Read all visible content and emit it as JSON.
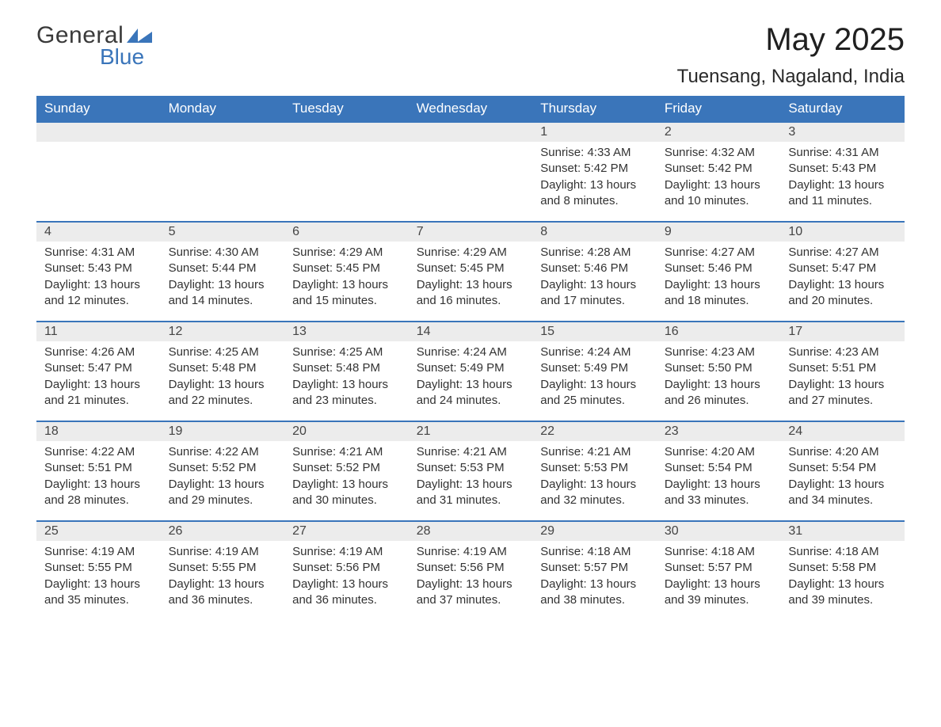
{
  "logo": {
    "word1": "General",
    "word2": "Blue"
  },
  "title": "May 2025",
  "location": "Tuensang, Nagaland, India",
  "colors": {
    "brand_blue": "#3a75ba",
    "header_bg": "#3a75ba",
    "header_text": "#ffffff",
    "daynum_bg": "#ececec",
    "body_text": "#333333",
    "page_bg": "#ffffff"
  },
  "weekdays": [
    "Sunday",
    "Monday",
    "Tuesday",
    "Wednesday",
    "Thursday",
    "Friday",
    "Saturday"
  ],
  "weeks": [
    [
      {
        "blank": true
      },
      {
        "blank": true
      },
      {
        "blank": true
      },
      {
        "blank": true
      },
      {
        "day": "1",
        "sunrise": "Sunrise: 4:33 AM",
        "sunset": "Sunset: 5:42 PM",
        "daylight": "Daylight: 13 hours and 8 minutes."
      },
      {
        "day": "2",
        "sunrise": "Sunrise: 4:32 AM",
        "sunset": "Sunset: 5:42 PM",
        "daylight": "Daylight: 13 hours and 10 minutes."
      },
      {
        "day": "3",
        "sunrise": "Sunrise: 4:31 AM",
        "sunset": "Sunset: 5:43 PM",
        "daylight": "Daylight: 13 hours and 11 minutes."
      }
    ],
    [
      {
        "day": "4",
        "sunrise": "Sunrise: 4:31 AM",
        "sunset": "Sunset: 5:43 PM",
        "daylight": "Daylight: 13 hours and 12 minutes."
      },
      {
        "day": "5",
        "sunrise": "Sunrise: 4:30 AM",
        "sunset": "Sunset: 5:44 PM",
        "daylight": "Daylight: 13 hours and 14 minutes."
      },
      {
        "day": "6",
        "sunrise": "Sunrise: 4:29 AM",
        "sunset": "Sunset: 5:45 PM",
        "daylight": "Daylight: 13 hours and 15 minutes."
      },
      {
        "day": "7",
        "sunrise": "Sunrise: 4:29 AM",
        "sunset": "Sunset: 5:45 PM",
        "daylight": "Daylight: 13 hours and 16 minutes."
      },
      {
        "day": "8",
        "sunrise": "Sunrise: 4:28 AM",
        "sunset": "Sunset: 5:46 PM",
        "daylight": "Daylight: 13 hours and 17 minutes."
      },
      {
        "day": "9",
        "sunrise": "Sunrise: 4:27 AM",
        "sunset": "Sunset: 5:46 PM",
        "daylight": "Daylight: 13 hours and 18 minutes."
      },
      {
        "day": "10",
        "sunrise": "Sunrise: 4:27 AM",
        "sunset": "Sunset: 5:47 PM",
        "daylight": "Daylight: 13 hours and 20 minutes."
      }
    ],
    [
      {
        "day": "11",
        "sunrise": "Sunrise: 4:26 AM",
        "sunset": "Sunset: 5:47 PM",
        "daylight": "Daylight: 13 hours and 21 minutes."
      },
      {
        "day": "12",
        "sunrise": "Sunrise: 4:25 AM",
        "sunset": "Sunset: 5:48 PM",
        "daylight": "Daylight: 13 hours and 22 minutes."
      },
      {
        "day": "13",
        "sunrise": "Sunrise: 4:25 AM",
        "sunset": "Sunset: 5:48 PM",
        "daylight": "Daylight: 13 hours and 23 minutes."
      },
      {
        "day": "14",
        "sunrise": "Sunrise: 4:24 AM",
        "sunset": "Sunset: 5:49 PM",
        "daylight": "Daylight: 13 hours and 24 minutes."
      },
      {
        "day": "15",
        "sunrise": "Sunrise: 4:24 AM",
        "sunset": "Sunset: 5:49 PM",
        "daylight": "Daylight: 13 hours and 25 minutes."
      },
      {
        "day": "16",
        "sunrise": "Sunrise: 4:23 AM",
        "sunset": "Sunset: 5:50 PM",
        "daylight": "Daylight: 13 hours and 26 minutes."
      },
      {
        "day": "17",
        "sunrise": "Sunrise: 4:23 AM",
        "sunset": "Sunset: 5:51 PM",
        "daylight": "Daylight: 13 hours and 27 minutes."
      }
    ],
    [
      {
        "day": "18",
        "sunrise": "Sunrise: 4:22 AM",
        "sunset": "Sunset: 5:51 PM",
        "daylight": "Daylight: 13 hours and 28 minutes."
      },
      {
        "day": "19",
        "sunrise": "Sunrise: 4:22 AM",
        "sunset": "Sunset: 5:52 PM",
        "daylight": "Daylight: 13 hours and 29 minutes."
      },
      {
        "day": "20",
        "sunrise": "Sunrise: 4:21 AM",
        "sunset": "Sunset: 5:52 PM",
        "daylight": "Daylight: 13 hours and 30 minutes."
      },
      {
        "day": "21",
        "sunrise": "Sunrise: 4:21 AM",
        "sunset": "Sunset: 5:53 PM",
        "daylight": "Daylight: 13 hours and 31 minutes."
      },
      {
        "day": "22",
        "sunrise": "Sunrise: 4:21 AM",
        "sunset": "Sunset: 5:53 PM",
        "daylight": "Daylight: 13 hours and 32 minutes."
      },
      {
        "day": "23",
        "sunrise": "Sunrise: 4:20 AM",
        "sunset": "Sunset: 5:54 PM",
        "daylight": "Daylight: 13 hours and 33 minutes."
      },
      {
        "day": "24",
        "sunrise": "Sunrise: 4:20 AM",
        "sunset": "Sunset: 5:54 PM",
        "daylight": "Daylight: 13 hours and 34 minutes."
      }
    ],
    [
      {
        "day": "25",
        "sunrise": "Sunrise: 4:19 AM",
        "sunset": "Sunset: 5:55 PM",
        "daylight": "Daylight: 13 hours and 35 minutes."
      },
      {
        "day": "26",
        "sunrise": "Sunrise: 4:19 AM",
        "sunset": "Sunset: 5:55 PM",
        "daylight": "Daylight: 13 hours and 36 minutes."
      },
      {
        "day": "27",
        "sunrise": "Sunrise: 4:19 AM",
        "sunset": "Sunset: 5:56 PM",
        "daylight": "Daylight: 13 hours and 36 minutes."
      },
      {
        "day": "28",
        "sunrise": "Sunrise: 4:19 AM",
        "sunset": "Sunset: 5:56 PM",
        "daylight": "Daylight: 13 hours and 37 minutes."
      },
      {
        "day": "29",
        "sunrise": "Sunrise: 4:18 AM",
        "sunset": "Sunset: 5:57 PM",
        "daylight": "Daylight: 13 hours and 38 minutes."
      },
      {
        "day": "30",
        "sunrise": "Sunrise: 4:18 AM",
        "sunset": "Sunset: 5:57 PM",
        "daylight": "Daylight: 13 hours and 39 minutes."
      },
      {
        "day": "31",
        "sunrise": "Sunrise: 4:18 AM",
        "sunset": "Sunset: 5:58 PM",
        "daylight": "Daylight: 13 hours and 39 minutes."
      }
    ]
  ]
}
